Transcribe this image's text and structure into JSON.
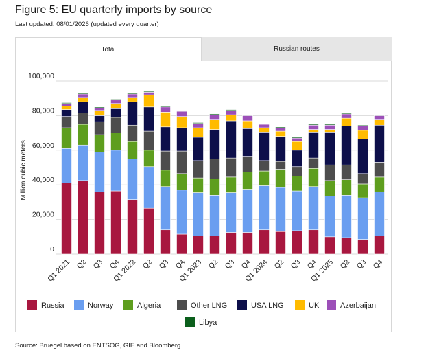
{
  "header": {
    "title": "Figure 5: EU quarterly imports by source",
    "subtitle": "Last updated: 08/01/2026 (updated every quarter)"
  },
  "tabs": [
    {
      "label": "Total",
      "active": true
    },
    {
      "label": "Russian routes",
      "active": false
    }
  ],
  "source": "Source: Bruegel based on ENTSOG, GIE and Bloomberg",
  "chart_data": {
    "type": "bar",
    "stacked": true,
    "ylabel": "Million cubic meters",
    "ylim": [
      0,
      100000
    ],
    "yticks": [
      0,
      20000,
      40000,
      60000,
      80000,
      100000
    ],
    "ytick_labels": [
      "0",
      "20,000",
      "40,000",
      "60,000",
      "80,000",
      "100,000"
    ],
    "grid": true,
    "legend_position": "bottom",
    "categories": [
      "Q1 2021",
      "Q2",
      "Q3",
      "Q4",
      "Q1 2022",
      "Q2",
      "Q3",
      "Q4",
      "Q1 2023",
      "Q2",
      "Q3",
      "Q4",
      "Q1 2024",
      "Q2",
      "Q3",
      "Q4",
      "Q1 2025",
      "Q2",
      "Q3",
      "Q4"
    ],
    "series": [
      {
        "name": "Russia",
        "color": "#a8173f",
        "values": [
          41000,
          42500,
          36000,
          36500,
          31500,
          26500,
          14000,
          11500,
          10500,
          10500,
          12500,
          12500,
          14000,
          13000,
          13500,
          14000,
          10000,
          9500,
          8500,
          10500
        ]
      },
      {
        "name": "Norway",
        "color": "#6a9ef0",
        "values": [
          20000,
          20500,
          23000,
          23500,
          23500,
          24000,
          25000,
          25500,
          25000,
          23500,
          23000,
          25000,
          25500,
          25500,
          23000,
          25000,
          23500,
          24500,
          24000,
          25500
        ]
      },
      {
        "name": "Algeria",
        "color": "#5e9e1e",
        "values": [
          12000,
          12000,
          10000,
          10000,
          10000,
          9500,
          9500,
          9500,
          8500,
          9500,
          9000,
          10000,
          8500,
          10500,
          8500,
          10500,
          9000,
          9000,
          8000,
          8500
        ]
      },
      {
        "name": "Other LNG",
        "color": "#4d4d4d",
        "values": [
          6500,
          6500,
          7500,
          9000,
          9500,
          11000,
          11000,
          13000,
          10000,
          11500,
          11000,
          9000,
          6000,
          4500,
          5500,
          6000,
          9000,
          8500,
          6000,
          8500
        ]
      },
      {
        "name": "USA LNG",
        "color": "#0d0f4a",
        "values": [
          4000,
          6500,
          3500,
          5000,
          13500,
          14000,
          14000,
          13500,
          13500,
          17000,
          21500,
          16000,
          16500,
          14500,
          9500,
          15000,
          19000,
          22500,
          20000,
          21500
        ]
      },
      {
        "name": "UK",
        "color": "#ffbb00",
        "values": [
          2000,
          2500,
          3000,
          3000,
          2500,
          7000,
          8500,
          6500,
          5500,
          5500,
          3500,
          4500,
          2500,
          3000,
          5000,
          1500,
          1500,
          4500,
          5000,
          3000
        ]
      },
      {
        "name": "Azerbaijan",
        "color": "#9c4fb8",
        "values": [
          1500,
          2000,
          1500,
          2000,
          2000,
          1500,
          3000,
          3000,
          2500,
          3000,
          2500,
          3000,
          2000,
          2000,
          2000,
          2500,
          2500,
          2500,
          2500,
          2500
        ]
      },
      {
        "name": "Libya",
        "color": "#0b5f1c",
        "values": [
          500,
          500,
          500,
          500,
          500,
          500,
          500,
          500,
          500,
          500,
          500,
          500,
          500,
          500,
          500,
          500,
          500,
          500,
          500,
          500
        ]
      }
    ]
  },
  "colors": {
    "tab_background": "#e6e6e6",
    "active_tab": "#ffffff",
    "gridline": "#d9d9d9"
  }
}
